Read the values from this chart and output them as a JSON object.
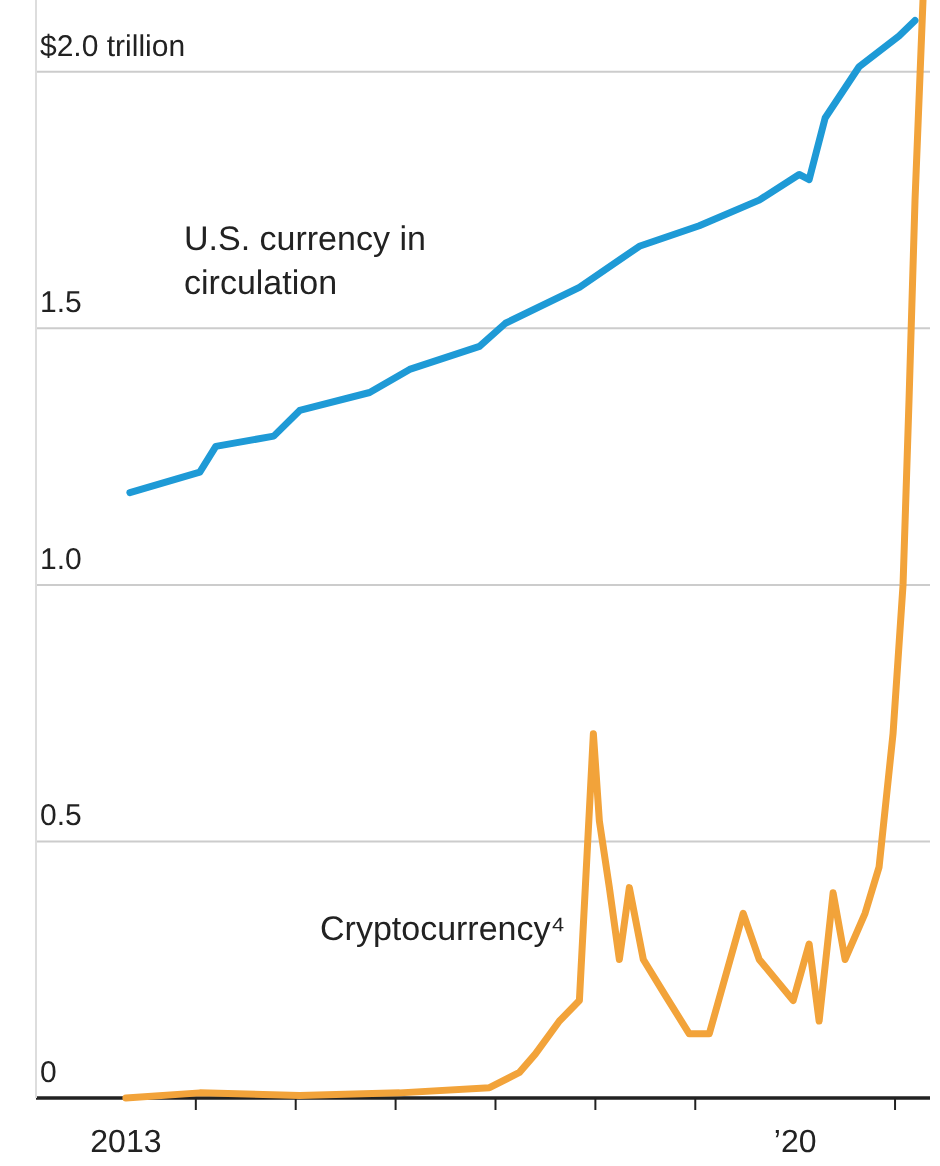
{
  "chart_data": {
    "type": "line",
    "xlim": [
      2012.4,
      2021.35
    ],
    "xticks": [
      {
        "value": 2013.3,
        "label": "2013"
      },
      {
        "value": 2014,
        "label": null
      },
      {
        "value": 2015,
        "label": null
      },
      {
        "value": 2016,
        "label": null
      },
      {
        "value": 2017,
        "label": null
      },
      {
        "value": 2018,
        "label": null
      },
      {
        "value": 2019,
        "label": null
      },
      {
        "value": 2020,
        "label": "’20"
      },
      {
        "value": 2021,
        "label": null
      }
    ],
    "ylim": [
      0,
      2.14
    ],
    "yticks": [
      {
        "value": 0,
        "label": "0"
      },
      {
        "value": 0.5,
        "label": "0.5"
      },
      {
        "value": 1,
        "label": "1.0"
      },
      {
        "value": 1.5,
        "label": "1.5"
      },
      {
        "value": 2,
        "label": "$2.0 trillion"
      }
    ],
    "grid": "y",
    "marker": "none",
    "line_style": "solid",
    "series": [
      {
        "name": "U.S. currency in circulation",
        "color": "#1e9ad6",
        "x": [
          2013.34,
          2014.04,
          2014.2,
          2014.78,
          2015.04,
          2015.74,
          2016.14,
          2016.84,
          2017.1,
          2017.84,
          2018.44,
          2019.04,
          2019.64,
          2020.04,
          2020.14,
          2020.3,
          2020.64,
          2021.04,
          2021.2
        ],
        "values": [
          1.18,
          1.22,
          1.27,
          1.29,
          1.34,
          1.375,
          1.42,
          1.465,
          1.51,
          1.58,
          1.66,
          1.7,
          1.75,
          1.8,
          1.79,
          1.91,
          2.01,
          2.07,
          2.1
        ]
      },
      {
        "name": "Cryptocurrency⁴",
        "color": "#f2a33a",
        "x": [
          2013.3,
          2014.04,
          2015.04,
          2016.04,
          2016.94,
          2017.24,
          2017.4,
          2017.64,
          2017.84,
          2017.98,
          2018.04,
          2018.14,
          2018.24,
          2018.34,
          2018.48,
          2018.7,
          2018.94,
          2019.14,
          2019.48,
          2019.64,
          2019.98,
          2020.14,
          2020.24,
          2020.38,
          2020.5,
          2020.7,
          2020.84,
          2020.98,
          2021.08,
          2021.14,
          2021.2,
          2021.28
        ],
        "values": [
          0,
          0.01,
          0.005,
          0.01,
          0.02,
          0.05,
          0.086,
          0.15,
          0.19,
          0.71,
          0.54,
          0.41,
          0.27,
          0.41,
          0.27,
          0.2,
          0.125,
          0.125,
          0.36,
          0.27,
          0.19,
          0.3,
          0.15,
          0.4,
          0.27,
          0.36,
          0.45,
          0.71,
          1.0,
          1.36,
          1.75,
          2.14
        ]
      }
    ]
  }
}
